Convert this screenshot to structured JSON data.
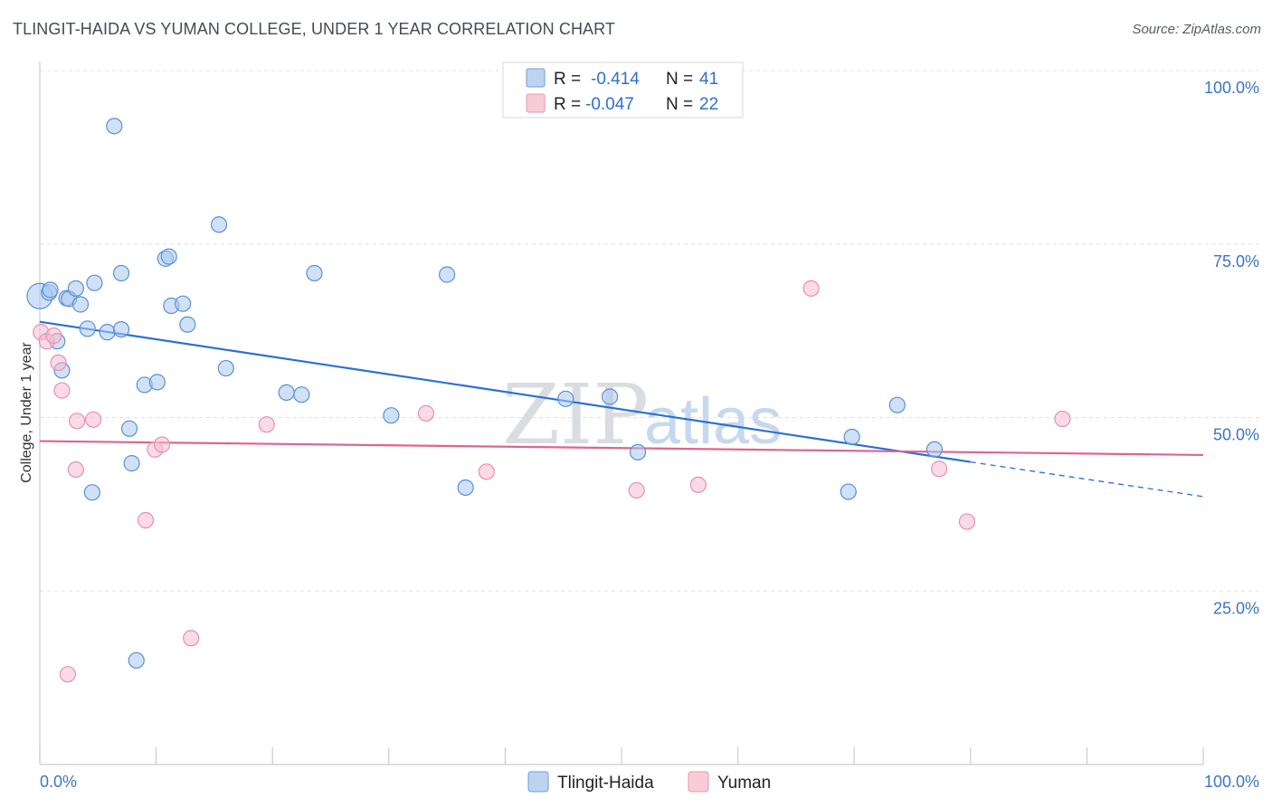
{
  "title": "TLINGIT-HAIDA VS YUMAN COLLEGE, UNDER 1 YEAR CORRELATION CHART",
  "source": "Source: ZipAtlas.com",
  "watermark": {
    "zip": "ZIP",
    "atlas": "atlas"
  },
  "colors": {
    "blue_fill": "#a9c8f0",
    "blue_stroke": "#5b8fd6",
    "blue_line": "#2a6fd6",
    "pink_fill": "#f5bccf",
    "pink_stroke": "#e690ae",
    "pink_line": "#e0638f",
    "grid": "#dde0e4",
    "tick_text": "#3b74c6"
  },
  "legend_stats": [
    {
      "r_label": "R =",
      "r_value": "-0.414",
      "n_label": "N =",
      "n_value": "41"
    },
    {
      "r_label": "R =",
      "r_value": "-0.047",
      "n_label": "N =",
      "n_value": "22"
    }
  ],
  "chart_data": {
    "type": "scatter",
    "title": "TLINGIT-HAIDA VS YUMAN COLLEGE, UNDER 1 YEAR CORRELATION CHART",
    "xlabel": "",
    "ylabel": "College, Under 1 year",
    "xlim": [
      0,
      100
    ],
    "ylim": [
      0,
      100
    ],
    "x_tick_labels": [
      {
        "value": 0,
        "label": "0.0%"
      },
      {
        "value": 100,
        "label": "100.0%"
      }
    ],
    "y_tick_labels": [
      {
        "value": 100,
        "label": "100.0%"
      },
      {
        "value": 75,
        "label": "75.0%"
      },
      {
        "value": 50,
        "label": "50.0%"
      },
      {
        "value": 25,
        "label": "25.0%"
      }
    ],
    "series": [
      {
        "name": "Tlingit-Haida",
        "color": "blue",
        "r": -0.414,
        "n": 41,
        "trend": {
          "x_start": 0,
          "y_start": 63.8,
          "x_end": 80,
          "y_end": 43.6,
          "dash_to_x": 100,
          "dash_to_y": 38.6
        },
        "points": [
          [
            0.0,
            67.5
          ],
          [
            0.8,
            68.0
          ],
          [
            0.9,
            68.4
          ],
          [
            1.5,
            61.0
          ],
          [
            1.9,
            56.8
          ],
          [
            2.3,
            67.2
          ],
          [
            2.5,
            67.1
          ],
          [
            3.1,
            68.6
          ],
          [
            3.5,
            66.3
          ],
          [
            4.1,
            62.8
          ],
          [
            4.5,
            39.2
          ],
          [
            4.7,
            69.4
          ],
          [
            5.8,
            62.3
          ],
          [
            6.4,
            92.0
          ],
          [
            7.0,
            70.8
          ],
          [
            7.0,
            62.7
          ],
          [
            7.7,
            48.4
          ],
          [
            7.9,
            43.4
          ],
          [
            8.3,
            15.0
          ],
          [
            9.0,
            54.7
          ],
          [
            10.1,
            55.1
          ],
          [
            10.8,
            72.9
          ],
          [
            11.1,
            73.2
          ],
          [
            11.3,
            66.1
          ],
          [
            12.3,
            66.4
          ],
          [
            12.7,
            63.4
          ],
          [
            15.4,
            77.8
          ],
          [
            16.0,
            57.1
          ],
          [
            21.2,
            53.6
          ],
          [
            22.5,
            53.3
          ],
          [
            23.6,
            70.8
          ],
          [
            30.2,
            50.3
          ],
          [
            35.0,
            70.6
          ],
          [
            36.6,
            39.9
          ],
          [
            45.2,
            52.7
          ],
          [
            49.0,
            53.0
          ],
          [
            51.4,
            45.0
          ],
          [
            69.5,
            39.3
          ],
          [
            69.8,
            47.2
          ],
          [
            73.7,
            51.8
          ],
          [
            76.9,
            45.4
          ]
        ]
      },
      {
        "name": "Yuman",
        "color": "pink",
        "r": -0.047,
        "n": 22,
        "trend": {
          "x_start": 0,
          "y_start": 46.6,
          "x_end": 100,
          "y_end": 44.6
        },
        "points": [
          [
            0.1,
            62.3
          ],
          [
            0.6,
            61.0
          ],
          [
            1.2,
            61.8
          ],
          [
            1.6,
            57.9
          ],
          [
            1.9,
            53.9
          ],
          [
            2.4,
            13.0
          ],
          [
            3.1,
            42.5
          ],
          [
            3.2,
            49.5
          ],
          [
            4.6,
            49.7
          ],
          [
            9.1,
            35.2
          ],
          [
            9.9,
            45.4
          ],
          [
            10.5,
            46.1
          ],
          [
            13.0,
            18.2
          ],
          [
            19.5,
            49.0
          ],
          [
            33.2,
            50.6
          ],
          [
            38.4,
            42.2
          ],
          [
            51.3,
            39.5
          ],
          [
            56.6,
            40.3
          ],
          [
            66.3,
            68.6
          ],
          [
            77.3,
            42.6
          ],
          [
            79.7,
            35.0
          ],
          [
            87.9,
            49.8
          ]
        ]
      }
    ]
  }
}
